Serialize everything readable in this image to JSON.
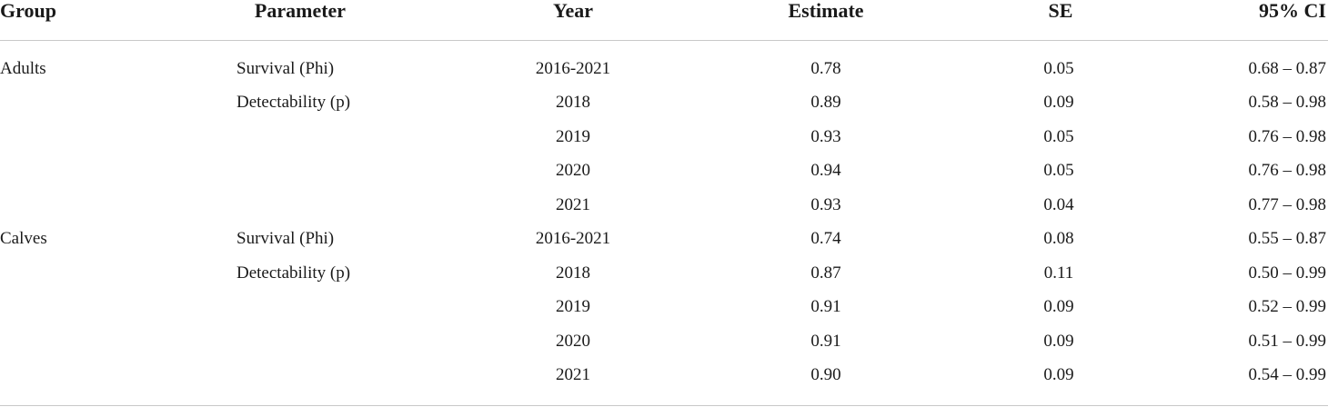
{
  "table": {
    "header": [
      "Group",
      "Parameter",
      "Year",
      "Estimate",
      "SE",
      "95% CI"
    ],
    "groups": [
      {
        "name": "Adults",
        "parameters": [
          {
            "name": "Survival (Phi)",
            "rows": [
              {
                "year": "2016-2021",
                "estimate": "0.78",
                "se": "0.05",
                "ci": "0.68 – 0.87"
              }
            ]
          },
          {
            "name": "Detectability (p)",
            "rows": [
              {
                "year": "2018",
                "estimate": "0.89",
                "se": "0.09",
                "ci": "0.58 – 0.98"
              },
              {
                "year": "2019",
                "estimate": "0.93",
                "se": "0.05",
                "ci": "0.76 – 0.98"
              },
              {
                "year": "2020",
                "estimate": "0.94",
                "se": "0.05",
                "ci": "0.76 – 0.98"
              },
              {
                "year": "2021",
                "estimate": "0.93",
                "se": "0.04",
                "ci": "0.77 – 0.98"
              }
            ]
          }
        ]
      },
      {
        "name": "Calves",
        "parameters": [
          {
            "name": "Survival (Phi)",
            "rows": [
              {
                "year": "2016-2021",
                "estimate": "0.74",
                "se": "0.08",
                "ci": "0.55 – 0.87"
              }
            ]
          },
          {
            "name": "Detectability (p)",
            "rows": [
              {
                "year": "2018",
                "estimate": "0.87",
                "se": "0.11",
                "ci": "0.50 – 0.99"
              },
              {
                "year": "2019",
                "estimate": "0.91",
                "se": "0.09",
                "ci": "0.52 – 0.99"
              },
              {
                "year": "2020",
                "estimate": "0.91",
                "se": "0.09",
                "ci": "0.51 – 0.99"
              },
              {
                "year": "2021",
                "estimate": "0.90",
                "se": "0.09",
                "ci": "0.54 – 0.99"
              }
            ]
          }
        ]
      }
    ]
  }
}
